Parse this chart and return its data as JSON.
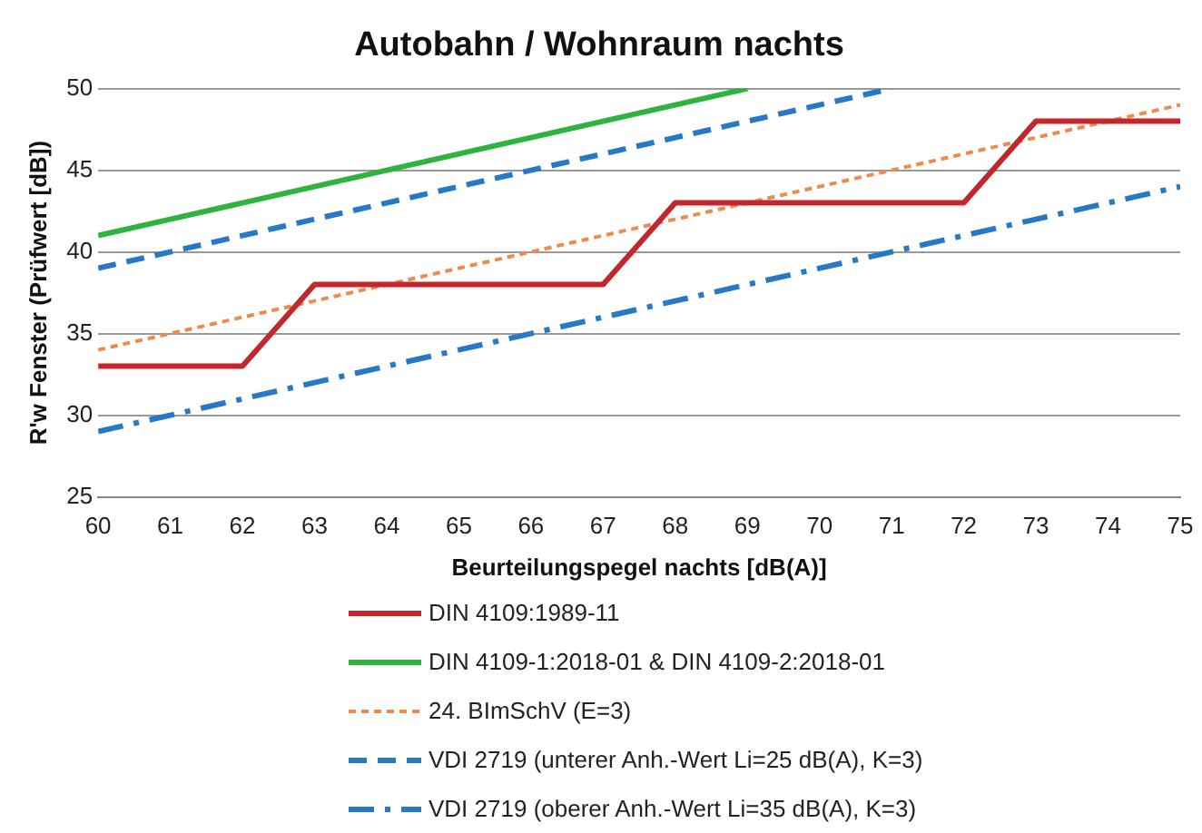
{
  "chart_data": {
    "type": "line",
    "title": "Autobahn / Wohnraum nachts",
    "xlabel": "Beurteilungspegel nachts [dB(A)]",
    "ylabel": "R'w Fenster (Prüfwert [dB])",
    "xlim": [
      60,
      75
    ],
    "xticks": [
      60,
      61,
      62,
      63,
      64,
      65,
      66,
      67,
      68,
      69,
      70,
      71,
      72,
      73,
      74,
      75
    ],
    "ylim": [
      25,
      50
    ],
    "yticks": [
      25,
      30,
      35,
      40,
      45,
      50
    ],
    "grid": "y",
    "legend": "bottom",
    "marker": "none",
    "series": [
      {
        "name": "DIN 4109:1989-11",
        "color": "#c0282d",
        "line_style": "solid",
        "x": [
          60,
          61,
          62,
          63,
          64,
          65,
          66,
          67,
          68,
          69,
          70,
          71,
          72,
          73,
          74,
          75
        ],
        "values": [
          33,
          33,
          33,
          38,
          38,
          38,
          38,
          38,
          43,
          43,
          43,
          43,
          43,
          48,
          48,
          48
        ]
      },
      {
        "name": "DIN 4109-1:2018-01 & DIN 4109-2:2018-01",
        "color": "#2eb33f",
        "line_style": "solid",
        "x": [
          60,
          61,
          62,
          63,
          64,
          65,
          66,
          67,
          68,
          69
        ],
        "values": [
          41,
          42,
          43,
          44,
          45,
          46,
          47,
          48,
          49,
          50
        ]
      },
      {
        "name": "24. BImSchV (E=3)",
        "color": "#f08a4b",
        "line_style": "dotted",
        "x": [
          60,
          61,
          62,
          63,
          64,
          65,
          66,
          67,
          68,
          69,
          70,
          71,
          72,
          73,
          74,
          75
        ],
        "values": [
          34,
          35,
          36,
          37,
          38,
          39,
          40,
          41,
          42,
          43,
          44,
          45,
          46,
          47,
          48,
          49
        ]
      },
      {
        "name": "VDI 2719 (unterer Anh.-Wert Li=25 dB(A), K=3)",
        "color": "#2878c8",
        "line_style": "dashed",
        "x": [
          60,
          61,
          62,
          63,
          64,
          65,
          66,
          67,
          68,
          69,
          70,
          71
        ],
        "values": [
          39,
          40,
          41,
          42,
          43,
          44,
          45,
          46,
          47,
          48,
          49,
          50
        ]
      },
      {
        "name": "VDI 2719 (oberer Anh.-Wert Li=35 dB(A), K=3)",
        "color": "#2878c8",
        "line_style": "dashdot",
        "x": [
          60,
          61,
          62,
          63,
          64,
          65,
          66,
          67,
          68,
          69,
          70,
          71,
          72,
          73,
          74,
          75
        ],
        "values": [
          29,
          30,
          31,
          32,
          33,
          34,
          35,
          36,
          37,
          38,
          39,
          40,
          41,
          42,
          43,
          44
        ]
      }
    ]
  }
}
